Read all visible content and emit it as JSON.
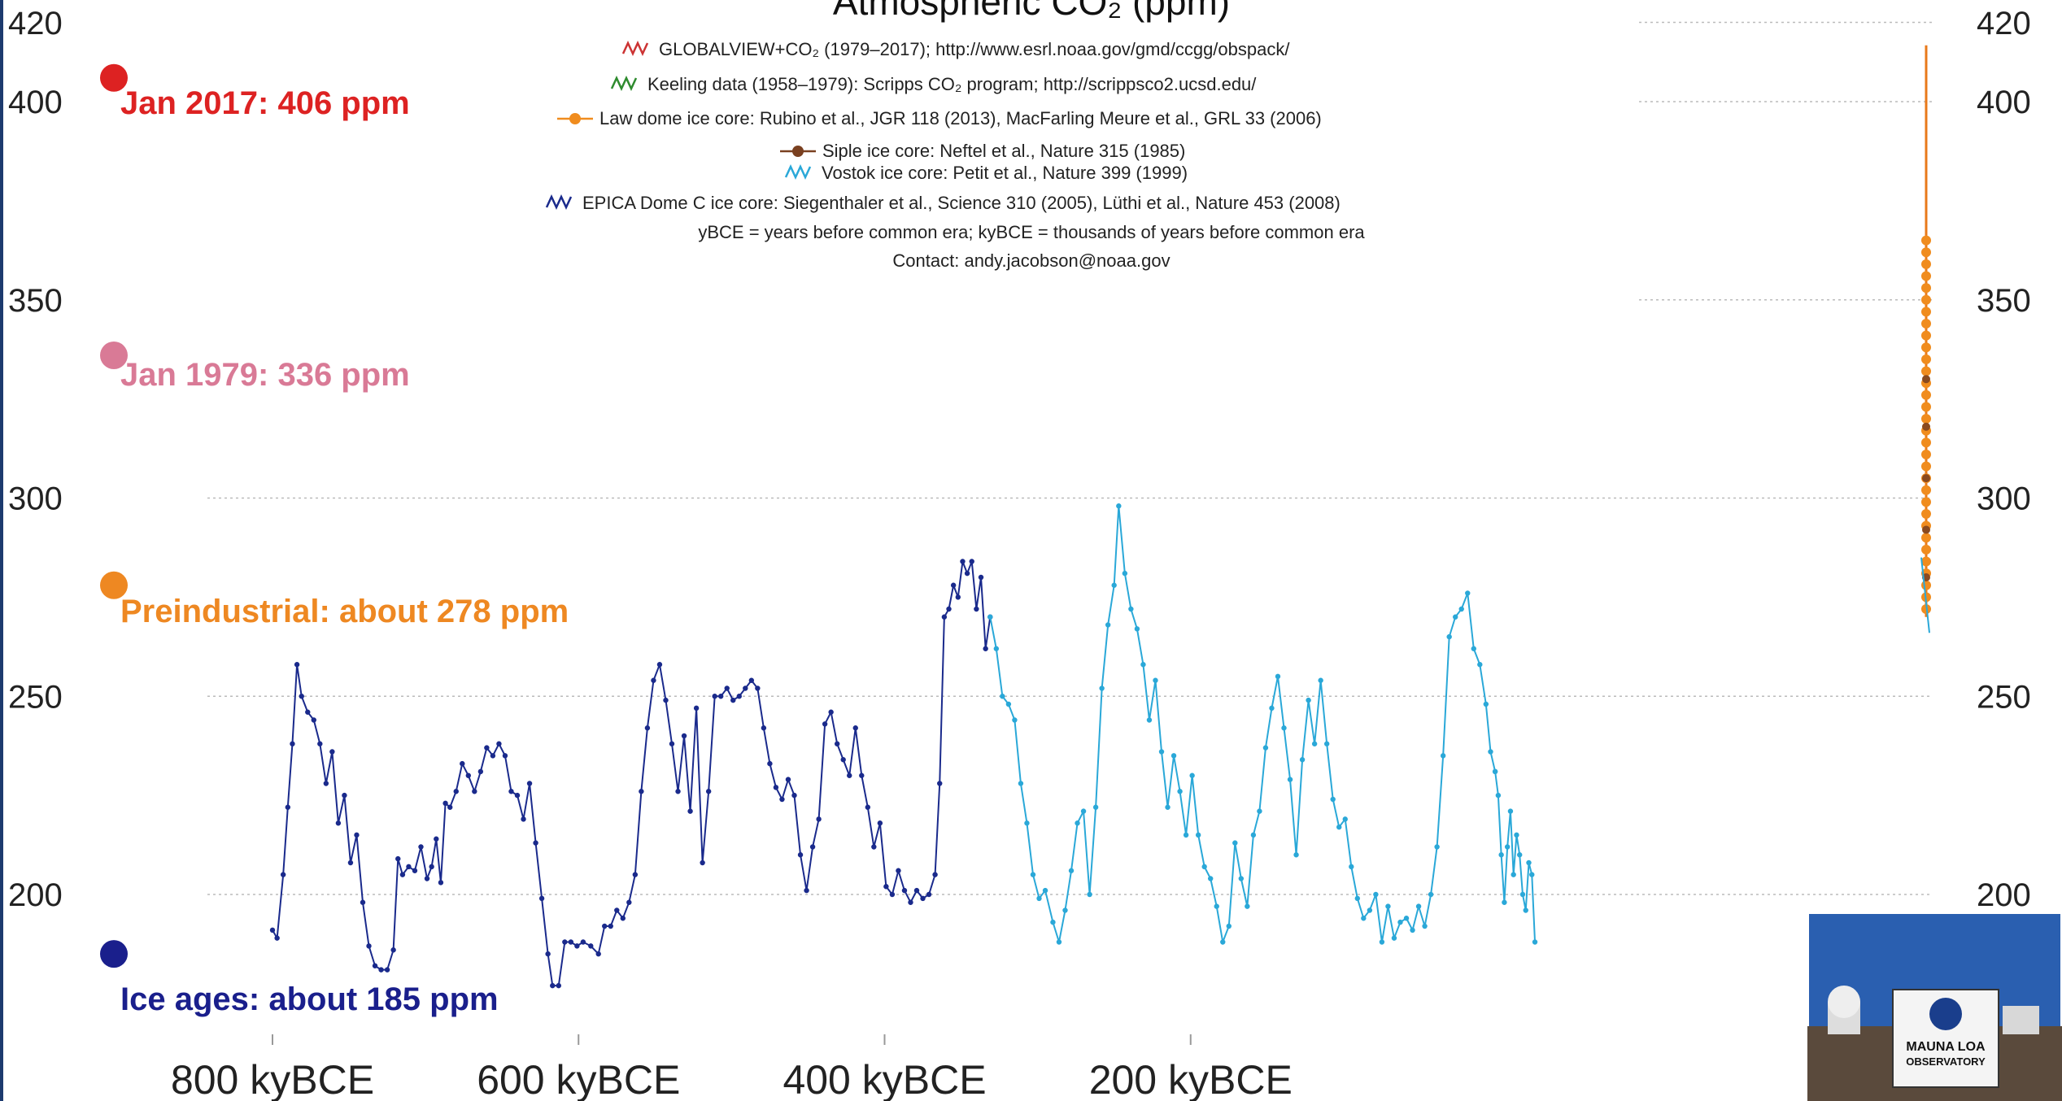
{
  "chart_data": {
    "type": "line",
    "title": "Atmospheric CO₂ (ppm)",
    "xlabel": "",
    "ylabel": "",
    "xlim": [
      -830,
      5
    ],
    "ylim": [
      160,
      420
    ],
    "grid": true,
    "y_ticks": [
      200,
      250,
      300,
      350,
      400,
      420
    ],
    "x_ticks": [
      {
        "value": -800,
        "label": "800 kyBCE"
      },
      {
        "value": -600,
        "label": "600 kyBCE"
      },
      {
        "value": -400,
        "label": "400 kyBCE"
      },
      {
        "value": -200,
        "label": "200 kyBCE"
      }
    ],
    "legend": [
      {
        "label": "GLOBALVIEW+CO₂ (1979–2017); http://www.esrl.noaa.gov/gmd/ccgg/obspack/",
        "color": "#cc3333"
      },
      {
        "label": "Keeling data (1958–1979): Scripps CO₂ program; http://scrippsco2.ucsd.edu/",
        "color": "#2e8b2e"
      },
      {
        "label": "Law dome ice core:  Rubino et al., JGR 118 (2013), MacFarling Meure et al., GRL 33 (2006)",
        "color": "#f08c1e"
      },
      {
        "label": "Siple ice core:  Neftel et al., Nature 315 (1985)",
        "color": "#7a4020"
      },
      {
        "label": "Vostok ice core:  Petit et al., Nature 399 (1999)",
        "color": "#2aa8d8"
      },
      {
        "label": "EPICA Dome C ice core:  Siegenthaler et al., Science 310 (2005), Lüthi et al., Nature 453 (2008)",
        "color": "#1a2a8c"
      }
    ],
    "notes": [
      "yBCE = years before common era; kyBCE = thousands of years before common era",
      "Contact: andy.jacobson@noaa.gov"
    ],
    "annotations": [
      {
        "label": "Jan 2017: 406 ppm",
        "value": 406,
        "color": "#dd2222"
      },
      {
        "label": "Jan 1979: 336 ppm",
        "value": 336,
        "color": "#d97a96"
      },
      {
        "label": "Preindustrial: about 278 ppm",
        "value": 278,
        "color": "#ee8822"
      },
      {
        "label": "Ice ages: about 185 ppm",
        "value": 185,
        "color": "#1a1f8c"
      }
    ],
    "series": [
      {
        "name": "EPICA Dome C ice core",
        "color": "#1a2a8c",
        "points": [
          [
            -800,
            191
          ],
          [
            -797,
            189
          ],
          [
            -793,
            205
          ],
          [
            -790,
            222
          ],
          [
            -787,
            238
          ],
          [
            -784,
            258
          ],
          [
            -781,
            250
          ],
          [
            -777,
            246
          ],
          [
            -773,
            244
          ],
          [
            -769,
            238
          ],
          [
            -765,
            228
          ],
          [
            -761,
            236
          ],
          [
            -757,
            218
          ],
          [
            -753,
            225
          ],
          [
            -749,
            208
          ],
          [
            -745,
            215
          ],
          [
            -741,
            198
          ],
          [
            -737,
            187
          ],
          [
            -733,
            182
          ],
          [
            -729,
            181
          ],
          [
            -725,
            181
          ],
          [
            -721,
            186
          ],
          [
            -718,
            209
          ],
          [
            -715,
            205
          ],
          [
            -711,
            207
          ],
          [
            -707,
            206
          ],
          [
            -703,
            212
          ],
          [
            -699,
            204
          ],
          [
            -696,
            207
          ],
          [
            -693,
            214
          ],
          [
            -690,
            203
          ],
          [
            -687,
            223
          ],
          [
            -684,
            222
          ],
          [
            -680,
            226
          ],
          [
            -676,
            233
          ],
          [
            -672,
            230
          ],
          [
            -668,
            226
          ],
          [
            -664,
            231
          ],
          [
            -660,
            237
          ],
          [
            -656,
            235
          ],
          [
            -652,
            238
          ],
          [
            -648,
            235
          ],
          [
            -644,
            226
          ],
          [
            -640,
            225
          ],
          [
            -636,
            219
          ],
          [
            -632,
            228
          ],
          [
            -628,
            213
          ],
          [
            -624,
            199
          ],
          [
            -620,
            185
          ],
          [
            -617,
            177
          ],
          [
            -613,
            177
          ],
          [
            -609,
            188
          ],
          [
            -605,
            188
          ],
          [
            -601,
            187
          ],
          [
            -597,
            188
          ],
          [
            -592,
            187
          ],
          [
            -587,
            185
          ],
          [
            -583,
            192
          ],
          [
            -579,
            192
          ],
          [
            -575,
            196
          ],
          [
            -571,
            194
          ],
          [
            -567,
            198
          ],
          [
            -563,
            205
          ],
          [
            -559,
            226
          ],
          [
            -555,
            242
          ],
          [
            -551,
            254
          ],
          [
            -547,
            258
          ],
          [
            -543,
            249
          ],
          [
            -539,
            238
          ],
          [
            -535,
            226
          ],
          [
            -531,
            240
          ],
          [
            -527,
            221
          ],
          [
            -523,
            247
          ],
          [
            -519,
            208
          ],
          [
            -515,
            226
          ],
          [
            -511,
            250
          ],
          [
            -507,
            250
          ],
          [
            -503,
            252
          ],
          [
            -499,
            249
          ],
          [
            -495,
            250
          ],
          [
            -491,
            252
          ],
          [
            -487,
            254
          ],
          [
            -483,
            252
          ],
          [
            -479,
            242
          ],
          [
            -475,
            233
          ],
          [
            -471,
            227
          ],
          [
            -467,
            224
          ],
          [
            -463,
            229
          ],
          [
            -459,
            225
          ],
          [
            -455,
            210
          ],
          [
            -451,
            201
          ],
          [
            -447,
            212
          ],
          [
            -443,
            219
          ],
          [
            -439,
            243
          ],
          [
            -435,
            246
          ],
          [
            -431,
            238
          ],
          [
            -427,
            234
          ],
          [
            -423,
            230
          ],
          [
            -419,
            242
          ],
          [
            -415,
            230
          ],
          [
            -411,
            222
          ],
          [
            -407,
            212
          ],
          [
            -403,
            218
          ],
          [
            -399,
            202
          ],
          [
            -395,
            200
          ],
          [
            -391,
            206
          ],
          [
            -387,
            201
          ],
          [
            -383,
            198
          ],
          [
            -379,
            201
          ],
          [
            -375,
            199
          ],
          [
            -371,
            200
          ],
          [
            -367,
            205
          ],
          [
            -364,
            228
          ],
          [
            -361,
            270
          ],
          [
            -358,
            272
          ],
          [
            -355,
            278
          ],
          [
            -352,
            275
          ],
          [
            -349,
            284
          ],
          [
            -346,
            281
          ],
          [
            -343,
            284
          ],
          [
            -340,
            272
          ],
          [
            -337,
            280
          ],
          [
            -334,
            262
          ],
          [
            -331,
            270
          ]
        ]
      },
      {
        "name": "Vostok ice core",
        "color": "#2aa8d8",
        "points": [
          [
            -331,
            270
          ],
          [
            -327,
            262
          ],
          [
            -323,
            250
          ],
          [
            -319,
            248
          ],
          [
            -315,
            244
          ],
          [
            -311,
            228
          ],
          [
            -307,
            218
          ],
          [
            -303,
            205
          ],
          [
            -299,
            199
          ],
          [
            -295,
            201
          ],
          [
            -290,
            193
          ],
          [
            -286,
            188
          ],
          [
            -282,
            196
          ],
          [
            -278,
            206
          ],
          [
            -274,
            218
          ],
          [
            -270,
            221
          ],
          [
            -266,
            200
          ],
          [
            -262,
            222
          ],
          [
            -258,
            252
          ],
          [
            -254,
            268
          ],
          [
            -250,
            278
          ],
          [
            -247,
            298
          ],
          [
            -243,
            281
          ],
          [
            -239,
            272
          ],
          [
            -235,
            267
          ],
          [
            -231,
            258
          ],
          [
            -227,
            244
          ],
          [
            -223,
            254
          ],
          [
            -219,
            236
          ],
          [
            -215,
            222
          ],
          [
            -211,
            235
          ],
          [
            -207,
            226
          ],
          [
            -203,
            215
          ],
          [
            -199,
            230
          ],
          [
            -195,
            215
          ],
          [
            -191,
            207
          ],
          [
            -187,
            204
          ],
          [
            -183,
            197
          ],
          [
            -179,
            188
          ],
          [
            -175,
            192
          ],
          [
            -171,
            213
          ],
          [
            -167,
            204
          ],
          [
            -163,
            197
          ],
          [
            -159,
            215
          ],
          [
            -155,
            221
          ],
          [
            -151,
            237
          ],
          [
            -147,
            247
          ],
          [
            -143,
            255
          ],
          [
            -139,
            242
          ],
          [
            -135,
            229
          ],
          [
            -131,
            210
          ],
          [
            -127,
            234
          ],
          [
            -123,
            249
          ],
          [
            -119,
            238
          ],
          [
            -115,
            254
          ],
          [
            -111,
            238
          ],
          [
            -107,
            224
          ],
          [
            -103,
            217
          ],
          [
            -99,
            219
          ],
          [
            -95,
            207
          ],
          [
            -91,
            199
          ],
          [
            -87,
            194
          ],
          [
            -83,
            196
          ],
          [
            -79,
            200
          ],
          [
            -75,
            188
          ],
          [
            -71,
            197
          ],
          [
            -67,
            189
          ],
          [
            -63,
            193
          ],
          [
            -59,
            194
          ],
          [
            -55,
            191
          ],
          [
            -51,
            197
          ],
          [
            -47,
            192
          ],
          [
            -43,
            200
          ],
          [
            -39,
            212
          ],
          [
            -35,
            235
          ],
          [
            -31,
            265
          ],
          [
            -27,
            270
          ],
          [
            -23,
            272
          ],
          [
            -19,
            276
          ],
          [
            -15,
            262
          ],
          [
            -11,
            258
          ],
          [
            -7,
            248
          ],
          [
            -4,
            236
          ],
          [
            -1,
            231
          ]
        ]
      },
      {
        "name": "Vostok ice core (recent)",
        "color": "#2aa8d8",
        "points": [
          [
            -1,
            231
          ],
          [
            1,
            225
          ],
          [
            3,
            210
          ],
          [
            5,
            198
          ],
          [
            7,
            212
          ],
          [
            9,
            221
          ],
          [
            11,
            205
          ],
          [
            13,
            215
          ],
          [
            15,
            210
          ],
          [
            17,
            200
          ],
          [
            19,
            196
          ],
          [
            21,
            208
          ],
          [
            23,
            205
          ],
          [
            25,
            188
          ]
        ]
      }
    ]
  },
  "chart_data_extra": {
    "right_series_color": "#e8791a",
    "logo": {
      "line1": "MAUNA LOA",
      "line2": "OBSERVATORY"
    }
  }
}
